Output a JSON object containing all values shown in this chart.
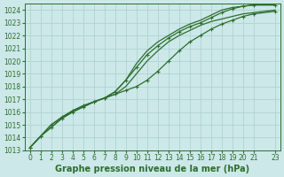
{
  "xlabel": "Graphe pression niveau de la mer (hPa)",
  "background_color": "#cce8e8",
  "grid_color": "#aacfcf",
  "line_color": "#2d6e2d",
  "xlim": [
    -0.5,
    23.5
  ],
  "ylim": [
    1013,
    1024.5
  ],
  "yticks": [
    1013,
    1014,
    1015,
    1016,
    1017,
    1018,
    1019,
    1020,
    1021,
    1022,
    1023,
    1024
  ],
  "xticks": [
    0,
    1,
    2,
    3,
    4,
    5,
    6,
    7,
    8,
    9,
    10,
    11,
    12,
    13,
    14,
    15,
    16,
    17,
    18,
    19,
    20,
    21,
    23
  ],
  "series": [
    {
      "x": [
        0,
        1,
        2,
        3,
        4,
        5,
        6,
        7,
        8,
        9,
        10,
        11,
        12,
        13,
        14,
        15,
        16,
        17,
        18,
        19,
        20,
        21,
        23
      ],
      "y": [
        1013.2,
        1014.1,
        1015.0,
        1015.6,
        1016.1,
        1016.5,
        1016.8,
        1017.1,
        1017.4,
        1017.7,
        1018.0,
        1018.5,
        1019.2,
        1020.0,
        1020.8,
        1021.5,
        1022.0,
        1022.5,
        1022.9,
        1023.2,
        1023.5,
        1023.7,
        1023.9
      ],
      "marker": true,
      "lw": 0.9
    },
    {
      "x": [
        0,
        1,
        2,
        3,
        4,
        5,
        6,
        7,
        8,
        9,
        10,
        11,
        12,
        13,
        14,
        15,
        16,
        17,
        18,
        19,
        20,
        21,
        23
      ],
      "y": [
        1013.2,
        1014.1,
        1015.0,
        1015.6,
        1016.1,
        1016.5,
        1016.8,
        1017.1,
        1017.4,
        1018.0,
        1019.0,
        1020.0,
        1020.8,
        1021.5,
        1022.0,
        1022.4,
        1022.8,
        1023.1,
        1023.3,
        1023.5,
        1023.7,
        1023.8,
        1024.0
      ],
      "marker": false,
      "lw": 0.9
    },
    {
      "x": [
        0,
        1,
        2,
        3,
        4,
        5,
        6,
        7,
        8,
        9,
        10,
        11,
        12,
        13,
        14,
        15,
        16,
        17,
        18,
        19,
        20,
        21,
        23
      ],
      "y": [
        1013.2,
        1014.1,
        1014.8,
        1015.5,
        1016.0,
        1016.4,
        1016.8,
        1017.1,
        1017.6,
        1018.5,
        1019.5,
        1020.5,
        1021.2,
        1021.8,
        1022.3,
        1022.7,
        1023.0,
        1023.4,
        1023.8,
        1024.1,
        1024.3,
        1024.4,
        1024.4
      ],
      "marker": true,
      "lw": 0.9
    },
    {
      "x": [
        0,
        1,
        2,
        3,
        4,
        5,
        6,
        7,
        8,
        9,
        10,
        11,
        12,
        13,
        14,
        15,
        16,
        17,
        18,
        19,
        20,
        21,
        23
      ],
      "y": [
        1013.2,
        1014.1,
        1014.8,
        1015.5,
        1016.0,
        1016.4,
        1016.8,
        1017.1,
        1017.6,
        1018.5,
        1019.8,
        1020.8,
        1021.5,
        1022.0,
        1022.5,
        1022.9,
        1023.2,
        1023.6,
        1024.0,
        1024.2,
        1024.3,
        1024.4,
        1024.4
      ],
      "marker": false,
      "lw": 0.9
    }
  ],
  "fontsize_label": 7,
  "fontsize_tick": 5.5
}
